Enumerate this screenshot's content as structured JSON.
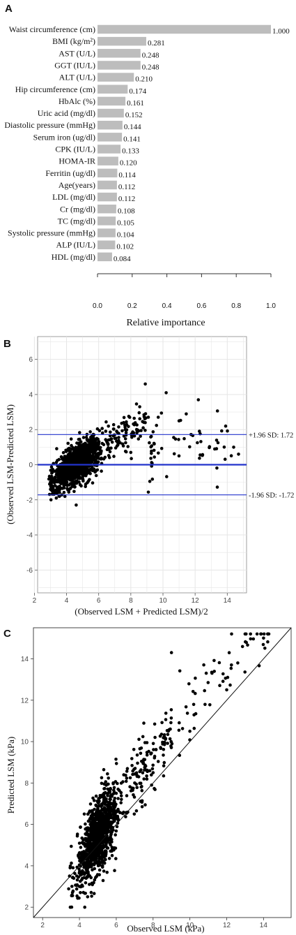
{
  "chart_data": [
    {
      "panel": "A",
      "type": "bar",
      "orientation": "horizontal",
      "categories": [
        "Waist circumference (cm)",
        "BMI (kg/m²)",
        "AST (U/L)",
        "GGT (IU/L)",
        "ALT (U/L)",
        "Hip circumference (cm)",
        "HbAlc (%)",
        "Uric acid (mg/dl)",
        "Diastolic pressure (mmHg)",
        "Serum iron (ug/dl)",
        "CPK (IU/L)",
        "HOMA-IR",
        "Ferritin (ug/dl)",
        "Age(years)",
        "LDL (mg/dl)",
        "Cr (mg/dl)",
        "TC (mg/dl)",
        "Systolic pressure (mmHg)",
        "ALP (IU/L)",
        "HDL (mg/dl)"
      ],
      "values": [
        1.0,
        0.281,
        0.248,
        0.248,
        0.21,
        0.174,
        0.161,
        0.152,
        0.144,
        0.141,
        0.133,
        0.12,
        0.114,
        0.112,
        0.112,
        0.108,
        0.105,
        0.104,
        0.102,
        0.084
      ],
      "value_labels": [
        "1.000",
        "0.281",
        "0.248",
        "0.248",
        "0.210",
        "0.174",
        "0.161",
        "0.152",
        "0.144",
        "0.141",
        "0.133",
        "0.120",
        "0.114",
        "0.112",
        "0.112",
        "0.108",
        "0.105",
        "0.104",
        "0.102",
        "0.084"
      ],
      "xlabel": "Relative importance",
      "xlim": [
        0,
        1
      ],
      "xticks": [
        "0.0",
        "0.2",
        "0.4",
        "0.6",
        "0.8",
        "1.0"
      ],
      "bar_color": "#bdbdbd"
    },
    {
      "panel": "B",
      "type": "scatter",
      "subtype": "bland-altman",
      "xlabel": "(Observed LSM + Predicted LSM)/2",
      "ylabel": "(Observed LSM-Predicted LSM)",
      "xlim": [
        2.2,
        15.2
      ],
      "ylim": [
        -7.3,
        7.3
      ],
      "xticks": [
        "2",
        "4",
        "6",
        "8",
        "10",
        "12",
        "14"
      ],
      "yticks": [
        "-6",
        "-4",
        "-2",
        "0",
        "2",
        "4",
        "6"
      ],
      "grid": true,
      "mean_line": 0,
      "limits": [
        {
          "value": 1.72,
          "label": "+1.96 SD: 1.72"
        },
        {
          "value": -1.72,
          "label": "-1.96 SD: -1.72"
        }
      ],
      "line_color": "#2233cc",
      "n_points_approx": 1300,
      "points_sample": [
        [
          3.9,
          -0.6
        ],
        [
          4.5,
          0.2
        ],
        [
          5.2,
          0.5
        ],
        [
          6.0,
          1.2
        ],
        [
          7.0,
          1.5
        ],
        [
          8.9,
          4.6
        ],
        [
          10.2,
          4.1
        ],
        [
          11.0,
          2.5
        ],
        [
          12.2,
          3.7
        ],
        [
          13.9,
          2.2
        ],
        [
          14.4,
          1.0
        ],
        [
          14.7,
          0.6
        ],
        [
          3.0,
          -1.4
        ],
        [
          4.6,
          -2.3
        ],
        [
          8.0,
          0.7
        ]
      ]
    },
    {
      "panel": "C",
      "type": "scatter",
      "xlabel": "Observed LSM (kPa)",
      "ylabel": "Predicted LSM (kPa)",
      "xlim": [
        1.5,
        15.5
      ],
      "ylim": [
        1.5,
        15.5
      ],
      "xticks": [
        "2",
        "4",
        "6",
        "8",
        "10",
        "12",
        "14"
      ],
      "yticks": [
        "2",
        "4",
        "6",
        "8",
        "10",
        "12",
        "14"
      ],
      "identity_line": true,
      "n_points_approx": 1300,
      "points_sample": [
        [
          3.5,
          2.0
        ],
        [
          4.5,
          4.2
        ],
        [
          5.0,
          5.0
        ],
        [
          5.5,
          6.5
        ],
        [
          6.0,
          7.5
        ],
        [
          7.0,
          8.0
        ],
        [
          9.0,
          14.3
        ],
        [
          10.0,
          10.5
        ],
        [
          12.0,
          12.5
        ],
        [
          13.0,
          15.2
        ],
        [
          14.0,
          15.0
        ],
        [
          12.6,
          13.8
        ],
        [
          8.0,
          8.5
        ],
        [
          4.0,
          3.0
        ]
      ]
    }
  ]
}
